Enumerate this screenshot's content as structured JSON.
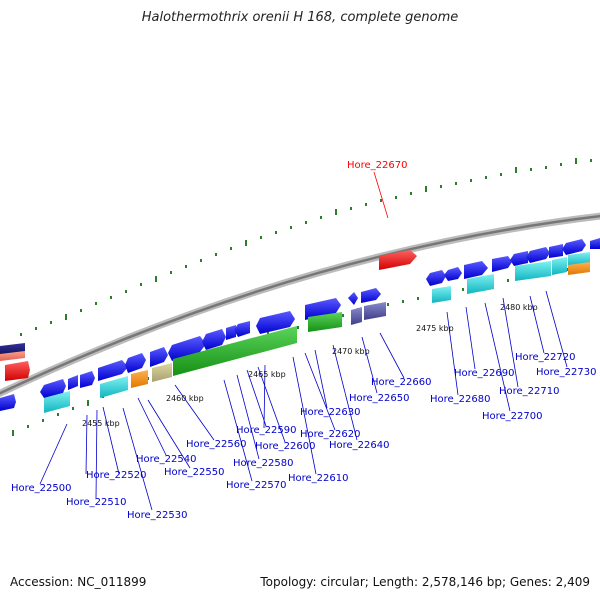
{
  "title": "Halothermothrix orenii H 168, complete genome",
  "footer": {
    "accession": "Accession: NC_011899",
    "topology": "Topology: circular; Length: 2,578,146 bp; Genes: 2,409"
  },
  "scale_labels": [
    "2455 kbp",
    "2460 kbp",
    "2465 kbp",
    "2470 kbp",
    "2475 kbp",
    "2480 kbp"
  ],
  "highlight_gene": "Hore_22670",
  "gene_labels": [
    "Hore_22500",
    "Hore_22510",
    "Hore_22520",
    "Hore_22530",
    "Hore_22540",
    "Hore_22550",
    "Hore_22560",
    "Hore_22570",
    "Hore_22580",
    "Hore_22590",
    "Hore_22600",
    "Hore_22610",
    "Hore_22620",
    "Hore_22630",
    "Hore_22640",
    "Hore_22650",
    "Hore_22660",
    "Hore_22680",
    "Hore_22690",
    "Hore_22700",
    "Hore_22710",
    "Hore_22720",
    "Hore_22730"
  ],
  "colors": {
    "cds": "#1a1aff",
    "highlight": "#ff0000",
    "backbone": "#888888",
    "tick": "#2e7d2e",
    "label": "#0000cc"
  }
}
